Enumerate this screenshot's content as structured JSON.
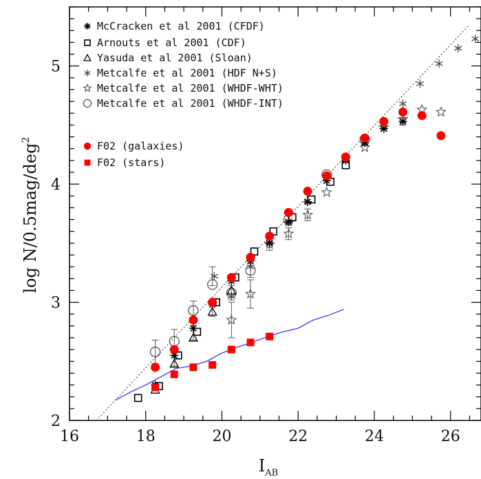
{
  "chart_data": {
    "type": "scatter",
    "xlabel": "I",
    "xlabel_sub": "AB",
    "ylabel": "log N/0.5mag/deg",
    "ylabel_sup": "2",
    "xlim": [
      16,
      26.8
    ],
    "ylim": [
      2,
      5.5
    ],
    "x_ticks": [
      16,
      18,
      20,
      22,
      24,
      26
    ],
    "y_ticks": [
      2,
      3,
      4,
      5
    ],
    "grid": false,
    "legend_position": "top-left",
    "series": [
      {
        "name": "McCracken et al 2001 (CFDF)",
        "marker": "asterisk",
        "color": "#000000",
        "points": [
          {
            "x": 18.25,
            "y": 2.3
          },
          {
            "x": 18.75,
            "y": 2.55
          },
          {
            "x": 19.25,
            "y": 2.78
          },
          {
            "x": 19.75,
            "y": 2.98
          },
          {
            "x": 20.25,
            "y": 3.18
          },
          {
            "x": 20.75,
            "y": 3.35
          },
          {
            "x": 21.25,
            "y": 3.5
          },
          {
            "x": 21.75,
            "y": 3.68
          },
          {
            "x": 22.25,
            "y": 3.85
          },
          {
            "x": 22.75,
            "y": 4.03
          },
          {
            "x": 23.25,
            "y": 4.2
          },
          {
            "x": 23.75,
            "y": 4.35
          },
          {
            "x": 24.25,
            "y": 4.47
          },
          {
            "x": 24.75,
            "y": 4.53
          }
        ]
      },
      {
        "name": "Arnouts et al 2001 (CDF)",
        "marker": "square-open",
        "color": "#000000",
        "points": [
          {
            "x": 17.8,
            "y": 2.19
          },
          {
            "x": 18.35,
            "y": 2.29
          },
          {
            "x": 18.85,
            "y": 2.55
          },
          {
            "x": 19.35,
            "y": 2.75
          },
          {
            "x": 19.85,
            "y": 3.0
          },
          {
            "x": 20.35,
            "y": 3.21
          },
          {
            "x": 20.85,
            "y": 3.43
          },
          {
            "x": 21.35,
            "y": 3.6
          },
          {
            "x": 21.85,
            "y": 3.72
          },
          {
            "x": 22.35,
            "y": 3.87
          },
          {
            "x": 22.85,
            "y": 4.02
          },
          {
            "x": 23.25,
            "y": 4.16
          }
        ]
      },
      {
        "name": "Yasuda et al 2001 (Sloan)",
        "marker": "triangle-open",
        "color": "#000000",
        "points": [
          {
            "x": 18.25,
            "y": 2.26
          },
          {
            "x": 18.75,
            "y": 2.48
          },
          {
            "x": 19.25,
            "y": 2.7
          },
          {
            "x": 19.75,
            "y": 2.92
          },
          {
            "x": 20.25,
            "y": 3.1
          }
        ]
      },
      {
        "name": "Metcalfe et al 2001 (HDF N+S)",
        "marker": "star6",
        "color": "#000000",
        "points": [
          {
            "x": 19.8,
            "y": 3.22
          },
          {
            "x": 20.25,
            "y": 3.05
          },
          {
            "x": 20.75,
            "y": 3.3
          },
          {
            "x": 21.25,
            "y": 3.5
          },
          {
            "x": 21.75,
            "y": 3.68
          },
          {
            "x": 22.25,
            "y": 3.85
          },
          {
            "x": 22.75,
            "y": 4.02
          },
          {
            "x": 23.25,
            "y": 4.18
          },
          {
            "x": 23.75,
            "y": 4.35
          },
          {
            "x": 24.25,
            "y": 4.53
          },
          {
            "x": 24.75,
            "y": 4.68
          },
          {
            "x": 25.2,
            "y": 4.85
          },
          {
            "x": 25.7,
            "y": 5.02
          },
          {
            "x": 26.2,
            "y": 5.15
          },
          {
            "x": 26.65,
            "y": 5.23
          }
        ]
      },
      {
        "name": "Metcalfe et al 2001 (WHDF-WHT)",
        "marker": "star5-open",
        "color": "#000000",
        "points": [
          {
            "x": 20.25,
            "y": 2.85
          },
          {
            "x": 20.75,
            "y": 3.07
          },
          {
            "x": 21.25,
            "y": 3.49
          },
          {
            "x": 21.75,
            "y": 3.58
          },
          {
            "x": 22.25,
            "y": 3.74
          },
          {
            "x": 22.75,
            "y": 3.93
          },
          {
            "x": 23.75,
            "y": 4.31
          },
          {
            "x": 24.25,
            "y": 4.48
          },
          {
            "x": 24.75,
            "y": 4.55
          },
          {
            "x": 25.25,
            "y": 4.63
          },
          {
            "x": 25.75,
            "y": 4.61
          }
        ]
      },
      {
        "name": "Metcalfe et al 2001 (WHDF-INT)",
        "marker": "circle-open",
        "color": "#000000",
        "points": [
          {
            "x": 18.25,
            "y": 2.58
          },
          {
            "x": 18.75,
            "y": 2.67
          },
          {
            "x": 19.25,
            "y": 2.93
          },
          {
            "x": 19.75,
            "y": 3.15
          },
          {
            "x": 20.25,
            "y": 3.08
          },
          {
            "x": 20.75,
            "y": 3.27
          },
          {
            "x": 21.75,
            "y": 3.7
          },
          {
            "x": 22.75,
            "y": 4.08
          },
          {
            "x": 23.75,
            "y": 4.38
          }
        ]
      },
      {
        "name": "F02 (galaxies)",
        "marker": "circle-filled",
        "color": "#ff0000",
        "points": [
          {
            "x": 18.25,
            "y": 2.45
          },
          {
            "x": 18.75,
            "y": 2.6
          },
          {
            "x": 19.25,
            "y": 2.85
          },
          {
            "x": 19.75,
            "y": 3.0
          },
          {
            "x": 20.25,
            "y": 3.21
          },
          {
            "x": 20.75,
            "y": 3.38
          },
          {
            "x": 21.25,
            "y": 3.56
          },
          {
            "x": 21.75,
            "y": 3.76
          },
          {
            "x": 22.25,
            "y": 3.94
          },
          {
            "x": 22.75,
            "y": 4.07
          },
          {
            "x": 23.25,
            "y": 4.23
          },
          {
            "x": 23.75,
            "y": 4.39
          },
          {
            "x": 24.25,
            "y": 4.53
          },
          {
            "x": 24.75,
            "y": 4.61
          },
          {
            "x": 25.25,
            "y": 4.58
          },
          {
            "x": 25.75,
            "y": 4.41
          }
        ]
      },
      {
        "name": "F02 (stars)",
        "marker": "square-filled",
        "color": "#ff0000",
        "points": [
          {
            "x": 18.25,
            "y": 2.28
          },
          {
            "x": 18.75,
            "y": 2.39
          },
          {
            "x": 19.25,
            "y": 2.45
          },
          {
            "x": 19.75,
            "y": 2.47
          },
          {
            "x": 20.25,
            "y": 2.6
          },
          {
            "x": 20.75,
            "y": 2.66
          },
          {
            "x": 21.25,
            "y": 2.71
          }
        ]
      }
    ],
    "lines": [
      {
        "style": "solid",
        "color": "#4444ff",
        "points": [
          {
            "x": 17.2,
            "y": 2.17
          },
          {
            "x": 17.6,
            "y": 2.24
          },
          {
            "x": 18.0,
            "y": 2.3
          },
          {
            "x": 18.4,
            "y": 2.37
          },
          {
            "x": 18.8,
            "y": 2.44
          },
          {
            "x": 19.2,
            "y": 2.46
          },
          {
            "x": 19.6,
            "y": 2.5
          },
          {
            "x": 20.0,
            "y": 2.57
          },
          {
            "x": 20.4,
            "y": 2.62
          },
          {
            "x": 20.8,
            "y": 2.66
          },
          {
            "x": 21.2,
            "y": 2.71
          },
          {
            "x": 21.6,
            "y": 2.75
          },
          {
            "x": 22.0,
            "y": 2.78
          },
          {
            "x": 22.4,
            "y": 2.85
          },
          {
            "x": 22.8,
            "y": 2.89
          },
          {
            "x": 23.2,
            "y": 2.94
          }
        ]
      },
      {
        "style": "dotted",
        "color": "#555555",
        "points": [
          {
            "x": 16.7,
            "y": 2.0
          },
          {
            "x": 26.5,
            "y": 5.35
          }
        ]
      }
    ]
  }
}
